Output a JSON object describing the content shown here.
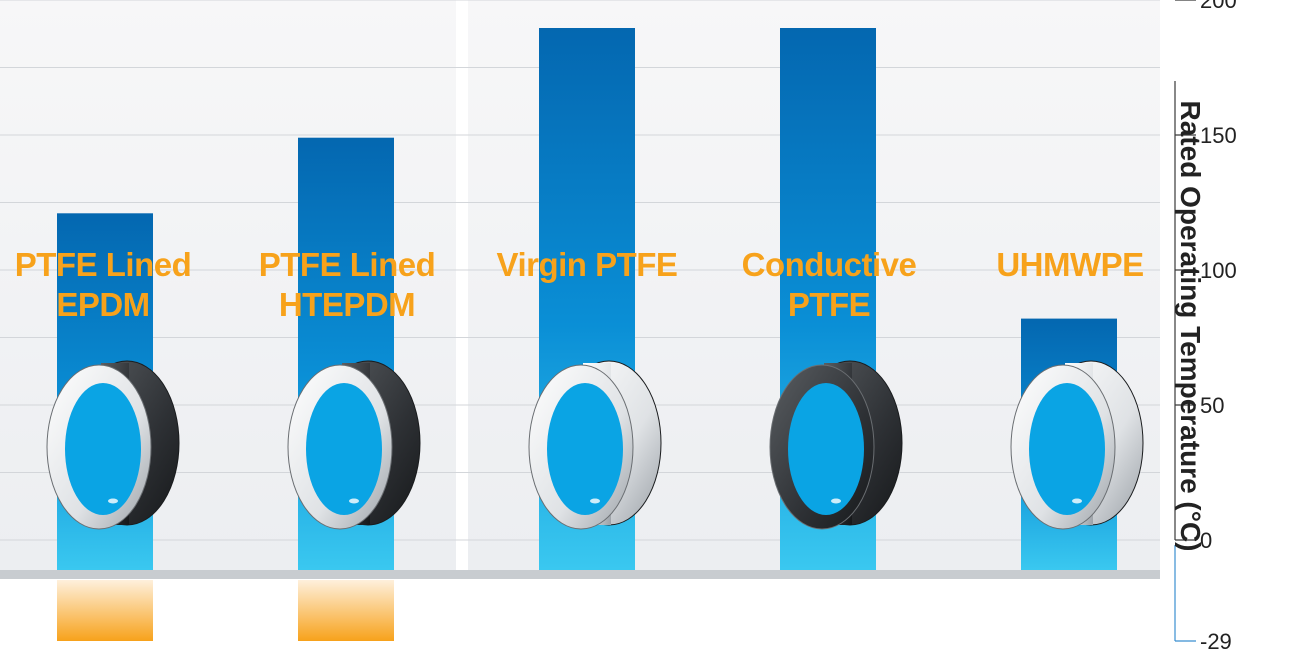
{
  "chart_data": {
    "type": "bar",
    "categories": [
      "PTFE Lined\nEPDM",
      "PTFE Lined\nHTEPDM",
      "Virgin PTFE",
      "Conductive\nPTFE",
      "UHMWPE"
    ],
    "series": [
      {
        "values": [
          [
            -29,
            121
          ],
          [
            -29,
            149
          ],
          [
            0,
            200
          ],
          [
            0,
            200
          ],
          [
            0,
            82
          ]
        ]
      }
    ],
    "ylabel": "Rated Operating Temperature (°C)",
    "yticks": [
      200,
      150,
      100,
      50,
      0,
      -29
    ],
    "ylim": [
      -29,
      215
    ],
    "grid": true,
    "colors": {
      "bar_top": "#0467b0",
      "bar_bottom": "#3ac8f0",
      "below_zero": "#f7a21b",
      "label": "#f7a21b",
      "baseline": "#c8ccd0",
      "axis": "#3a8fd0"
    }
  }
}
